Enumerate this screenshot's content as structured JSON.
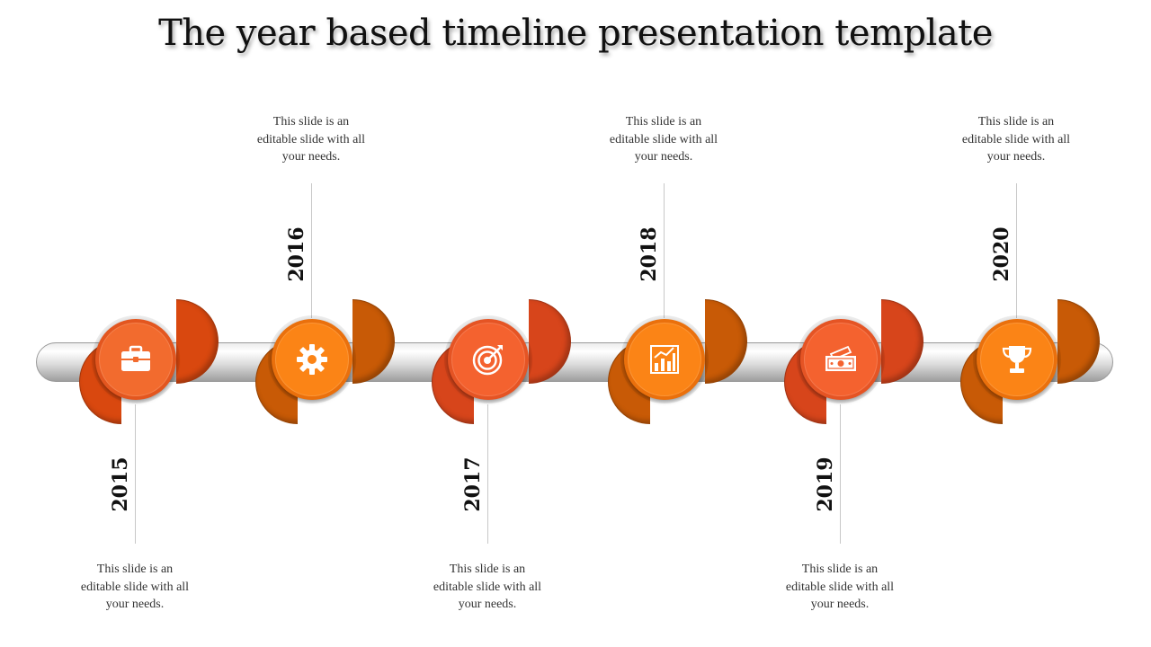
{
  "title": "The year based timeline presentation template",
  "colors": {
    "accent_dark": "#d9480f",
    "accent_orange": "#fd7e14",
    "accent_burnt": "#c85a06",
    "accent_red_orange": "#f05a28"
  },
  "milestones": [
    {
      "year": "2015",
      "icon": "briefcase-icon",
      "desc_lines": [
        "This slide is an",
        "editable slide with all",
        "your needs."
      ],
      "front_color": "#f26b2e",
      "back_color": "#d9480f"
    },
    {
      "year": "2016",
      "icon": "gear-icon",
      "desc_lines": [
        "This slide is an",
        "editable slide with all",
        "your needs."
      ],
      "front_color": "#fb8416",
      "back_color": "#c85a06"
    },
    {
      "year": "2017",
      "icon": "target-icon",
      "desc_lines": [
        "This slide is an",
        "editable slide with all",
        "your needs."
      ],
      "front_color": "#f4622f",
      "back_color": "#d7451b"
    },
    {
      "year": "2018",
      "icon": "bar-chart-icon",
      "desc_lines": [
        "This slide is an",
        "editable slide with all",
        "your needs."
      ],
      "front_color": "#fb8416",
      "back_color": "#c85a06"
    },
    {
      "year": "2019",
      "icon": "money-icon",
      "desc_lines": [
        "This slide is an",
        "editable slide with all",
        "your needs."
      ],
      "front_color": "#f4622f",
      "back_color": "#d7451b"
    },
    {
      "year": "2020",
      "icon": "trophy-icon",
      "desc_lines": [
        "This slide is an",
        "editable slide with all",
        "your needs."
      ],
      "front_color": "#fb8416",
      "back_color": "#c85a06"
    }
  ]
}
